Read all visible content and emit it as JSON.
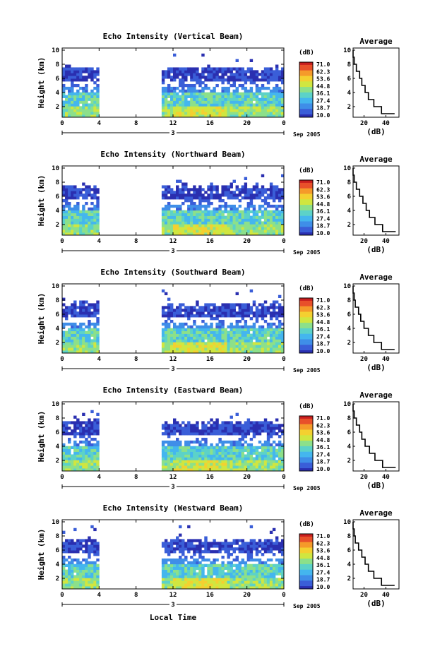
{
  "figure": {
    "xlabel": "Local Time",
    "ylabel": "Height (km)",
    "date_label": "Sep 2005",
    "day_label": "3",
    "colorbar_unit": "(dB)",
    "colorbar_ticks": [
      "71.0",
      "62.3",
      "53.6",
      "44.8",
      "36.1",
      "27.4",
      "18.7",
      "10.0"
    ],
    "avg_title": "Average",
    "avg_xlabel": "(dB)",
    "palette": [
      "#2a2fb0",
      "#3a5ed8",
      "#3f8ee8",
      "#44b6ee",
      "#5cd2c8",
      "#8ce08a",
      "#d0e640",
      "#f4d030",
      "#f59a2a",
      "#e8502a",
      "#c81e1e"
    ]
  },
  "chart_data": [
    {
      "type": "heatmap",
      "title": "Echo Intensity (Vertical Beam)",
      "xlabel": "Local Time",
      "ylabel": "Height (km)",
      "x_ticks": [
        "0",
        "4",
        "8",
        "12",
        "16",
        "20",
        "0"
      ],
      "xlim": [
        0,
        24
      ],
      "y_ticks": [
        "2",
        "4",
        "6",
        "8",
        "10"
      ],
      "ylim": [
        0.5,
        10.3
      ],
      "data_gap_hours": [
        4.0,
        10.9
      ],
      "colorbar": {
        "label": "(dB)",
        "range": [
          10.0,
          71.0
        ]
      },
      "average_profile": {
        "title": "Average",
        "xlabel": "(dB)",
        "x_ticks": [
          "20",
          "40"
        ],
        "heights_km": [
          1,
          2,
          3,
          4,
          5,
          6,
          7,
          8,
          9,
          10
        ],
        "values_db": [
          48,
          36,
          29,
          24,
          21,
          18,
          16,
          13,
          11,
          10
        ]
      }
    },
    {
      "type": "heatmap",
      "title": "Echo Intensity (Northward Beam)",
      "xlabel": "Local Time",
      "ylabel": "Height (km)",
      "x_ticks": [
        "0",
        "4",
        "8",
        "12",
        "16",
        "20",
        "0"
      ],
      "xlim": [
        0,
        24
      ],
      "y_ticks": [
        "2",
        "4",
        "6",
        "8",
        "10"
      ],
      "ylim": [
        0.5,
        10.3
      ],
      "data_gap_hours": [
        4.0,
        10.9
      ],
      "colorbar": {
        "label": "(dB)",
        "range": [
          10.0,
          71.0
        ]
      },
      "average_profile": {
        "title": "Average",
        "xlabel": "(dB)",
        "x_ticks": [
          "20",
          "40"
        ],
        "heights_km": [
          1,
          2,
          3,
          4,
          5,
          6,
          7,
          8,
          9,
          10
        ],
        "values_db": [
          49,
          37,
          30,
          25,
          22,
          19,
          16,
          13,
          11,
          10
        ]
      }
    },
    {
      "type": "heatmap",
      "title": "Echo Intensity (Southward Beam)",
      "xlabel": "Local Time",
      "ylabel": "Height (km)",
      "x_ticks": [
        "0",
        "4",
        "8",
        "12",
        "16",
        "20",
        "0"
      ],
      "xlim": [
        0,
        24
      ],
      "y_ticks": [
        "2",
        "4",
        "6",
        "8",
        "10"
      ],
      "ylim": [
        0.5,
        10.3
      ],
      "data_gap_hours": [
        4.0,
        10.9
      ],
      "colorbar": {
        "label": "(dB)",
        "range": [
          10.0,
          71.0
        ]
      },
      "average_profile": {
        "title": "Average",
        "xlabel": "(dB)",
        "x_ticks": [
          "20",
          "40"
        ],
        "heights_km": [
          1,
          2,
          3,
          4,
          5,
          6,
          7,
          8,
          9,
          10
        ],
        "values_db": [
          48,
          36,
          29,
          24,
          20,
          17,
          15,
          12,
          11,
          10
        ]
      }
    },
    {
      "type": "heatmap",
      "title": "Echo Intensity (Eastward Beam)",
      "xlabel": "Local Time",
      "ylabel": "Height (km)",
      "x_ticks": [
        "0",
        "4",
        "8",
        "12",
        "16",
        "20",
        "0"
      ],
      "xlim": [
        0,
        24
      ],
      "y_ticks": [
        "2",
        "4",
        "6",
        "8",
        "10"
      ],
      "ylim": [
        0.5,
        10.3
      ],
      "data_gap_hours": [
        4.0,
        10.9
      ],
      "colorbar": {
        "label": "(dB)",
        "range": [
          10.0,
          71.0
        ]
      },
      "average_profile": {
        "title": "Average",
        "xlabel": "(dB)",
        "x_ticks": [
          "20",
          "40"
        ],
        "heights_km": [
          1,
          2,
          3,
          4,
          5,
          6,
          7,
          8,
          9,
          10
        ],
        "values_db": [
          49,
          37,
          30,
          25,
          21,
          18,
          16,
          13,
          11,
          10
        ]
      }
    },
    {
      "type": "heatmap",
      "title": "Echo Intensity (Westward Beam)",
      "xlabel": "Local Time",
      "ylabel": "Height (km)",
      "x_ticks": [
        "0",
        "4",
        "8",
        "12",
        "16",
        "20",
        "0"
      ],
      "xlim": [
        0,
        24
      ],
      "y_ticks": [
        "2",
        "4",
        "6",
        "8",
        "10"
      ],
      "ylim": [
        0.5,
        10.3
      ],
      "data_gap_hours": [
        4.0,
        10.9
      ],
      "colorbar": {
        "label": "(dB)",
        "range": [
          10.0,
          71.0
        ]
      },
      "average_profile": {
        "title": "Average",
        "xlabel": "(dB)",
        "x_ticks": [
          "20",
          "40"
        ],
        "heights_km": [
          1,
          2,
          3,
          4,
          5,
          6,
          7,
          8,
          9,
          10
        ],
        "values_db": [
          48,
          36,
          29,
          24,
          21,
          18,
          15,
          12,
          11,
          10
        ]
      }
    }
  ]
}
